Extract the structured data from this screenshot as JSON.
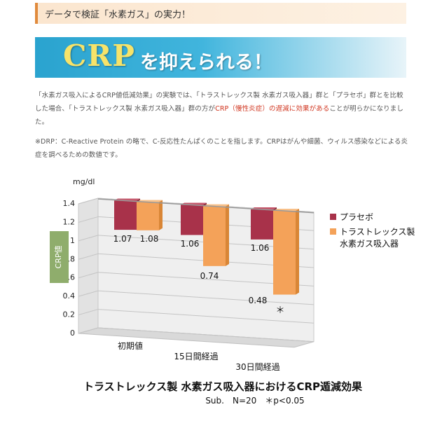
{
  "header": {
    "title": "データで検証「水素ガス」の実力！"
  },
  "banner": {
    "crp": "CRP",
    "rest": "を抑えられる！"
  },
  "paragraph1": {
    "part1": "「水素ガス吸入によるCRP値低減効果」の実験では、「トラストレックス製 水素ガス吸入器」群と「プラセボ」群とを比較した場合、「トラストレックス製 水素ガス吸入器」群の方が",
    "highlight": "CRP（慢性炎症）の遅減に効果がある",
    "part2": "ことが明らかになりました。"
  },
  "paragraph2": "※DRP：C-Reactive Protein の略で、C-反応性たんぱくのことを指します。CRPはがんや細菌、ウィルス感染などによる炎症を調べるための数値です。",
  "colors": {
    "placebo": "#a8324a",
    "device": "#f4a259",
    "ylabel_bg": "#8fad6c",
    "accent": "#d0351f"
  },
  "chart_data": {
    "type": "bar",
    "title": "トラストレックス製 水素ガス吸入器におけるCRP遁減効果",
    "subtitle": "Sub.　N=20　＊p<0.05",
    "unit": "mg/dl",
    "ylabel": "CRP値",
    "ylim": [
      0,
      1.4
    ],
    "yticks": [
      "0",
      "0.2",
      "0.4",
      "0.6",
      "0.8",
      "1",
      "1.2",
      "1.4"
    ],
    "categories": [
      "初期値",
      "15日間経過",
      "30日間経過"
    ],
    "series": [
      {
        "name": "プラセボ",
        "values": [
          1.07,
          1.06,
          1.06
        ],
        "labels": [
          "1.07",
          "1.06",
          "1.06"
        ]
      },
      {
        "name": "トラストレックス製 水素ガス吸入器",
        "legend_lines": [
          "トラストレックス製",
          "水素ガス吸入器"
        ],
        "values": [
          1.08,
          0.74,
          0.48
        ],
        "labels": [
          "1.08",
          "0.74",
          "0.48"
        ]
      }
    ],
    "annotation": "＊",
    "grid": true,
    "legend": "right"
  }
}
